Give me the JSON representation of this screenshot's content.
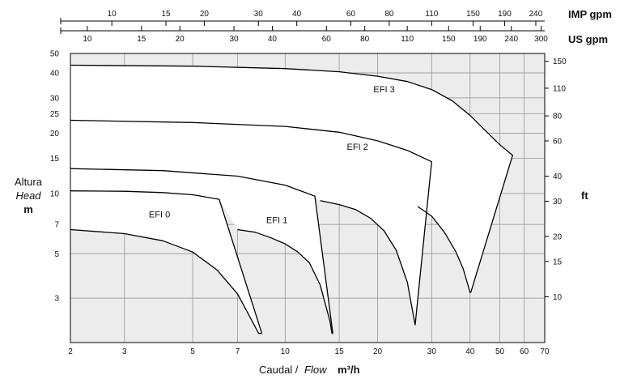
{
  "chart_data": {
    "type": "line",
    "scale": "log-log",
    "background_color": "#ececec",
    "envelope_fill_color": "#ffffff",
    "line_color": "#000000",
    "grid": true,
    "x_axis": {
      "label_es": "Caudal /",
      "label_en": "Flow",
      "unit": "m³/h",
      "range": [
        2,
        70
      ],
      "ticks": [
        2,
        3,
        5,
        7,
        10,
        15,
        20,
        30,
        40,
        50,
        60,
        70
      ]
    },
    "y_axis_left": {
      "label_es": "Altura",
      "label_en": "Head",
      "unit": "m",
      "range": [
        1.8,
        50
      ],
      "ticks": [
        3,
        5,
        7,
        10,
        15,
        20,
        25,
        30,
        40,
        50
      ]
    },
    "y_axis_right": {
      "unit": "ft",
      "ticks": [
        10,
        15,
        20,
        30,
        40,
        60,
        80,
        110,
        150
      ]
    },
    "top_axis_imp": {
      "unit": "IMP gpm",
      "ticks": [
        10,
        15,
        20,
        30,
        40,
        60,
        80,
        110,
        150,
        190,
        240
      ]
    },
    "top_axis_us": {
      "unit": "US gpm",
      "ticks": [
        10,
        15,
        20,
        30,
        40,
        60,
        80,
        110,
        150,
        190,
        240,
        300
      ]
    },
    "series": [
      {
        "name": "EFI 0",
        "label_at": [
          3.9,
          7.6
        ],
        "top_curve": [
          [
            2,
            10.3
          ],
          [
            3,
            10.25
          ],
          [
            4,
            10.1
          ],
          [
            5,
            9.85
          ],
          [
            6.1,
            9.35
          ]
        ],
        "bottom_curve": [
          [
            2,
            6.6
          ],
          [
            3,
            6.3
          ],
          [
            4,
            5.8
          ],
          [
            5,
            5.1
          ],
          [
            6,
            4.15
          ],
          [
            7,
            3.15
          ],
          [
            8.2,
            2.0
          ]
        ],
        "tip": [
          8.4,
          2.0
        ]
      },
      {
        "name": "EFI 1",
        "label_at": [
          9.4,
          7.1
        ],
        "top_curve": [
          [
            2,
            13.3
          ],
          [
            4,
            13.0
          ],
          [
            7,
            12.2
          ],
          [
            10,
            11.0
          ],
          [
            12.5,
            9.7
          ]
        ],
        "bottom_curve": [
          [
            7,
            6.6
          ],
          [
            8,
            6.4
          ],
          [
            9,
            6.0
          ],
          [
            10,
            5.6
          ],
          [
            11,
            5.1
          ],
          [
            12,
            4.5
          ],
          [
            13,
            3.5
          ],
          [
            14,
            2.3
          ],
          [
            14.2,
            2.0
          ]
        ],
        "tip": [
          14.3,
          2.0
        ]
      },
      {
        "name": "EFI 2",
        "label_at": [
          17.2,
          16.5
        ],
        "top_curve": [
          [
            2,
            23.2
          ],
          [
            5,
            22.6
          ],
          [
            10,
            21.6
          ],
          [
            15,
            20.2
          ],
          [
            20,
            18.3
          ],
          [
            25,
            16.4
          ],
          [
            30,
            14.4
          ]
        ],
        "bottom_curve": [
          [
            13,
            9.2
          ],
          [
            15,
            8.8
          ],
          [
            17,
            8.3
          ],
          [
            19,
            7.5
          ],
          [
            21,
            6.5
          ],
          [
            23,
            5.2
          ],
          [
            25,
            3.6
          ],
          [
            26.5,
            2.2
          ]
        ],
        "tip": [
          26.5,
          2.2
        ]
      },
      {
        "name": "EFI 3",
        "label_at": [
          21,
          32
        ],
        "top_curve": [
          [
            2,
            43.7
          ],
          [
            5,
            43.2
          ],
          [
            10,
            42.0
          ],
          [
            15,
            40.5
          ],
          [
            20,
            38.5
          ],
          [
            25,
            36.2
          ],
          [
            30,
            33.0
          ],
          [
            35,
            29.0
          ],
          [
            40,
            24.5
          ],
          [
            45,
            20.5
          ],
          [
            50,
            17.5
          ],
          [
            55,
            15.5
          ]
        ],
        "bottom_curve": [
          [
            27,
            8.6
          ],
          [
            30,
            7.7
          ],
          [
            33,
            6.4
          ],
          [
            36,
            5.1
          ],
          [
            38,
            4.2
          ],
          [
            40,
            3.2
          ]
        ],
        "tip": [
          40.2,
          3.2
        ]
      }
    ]
  }
}
